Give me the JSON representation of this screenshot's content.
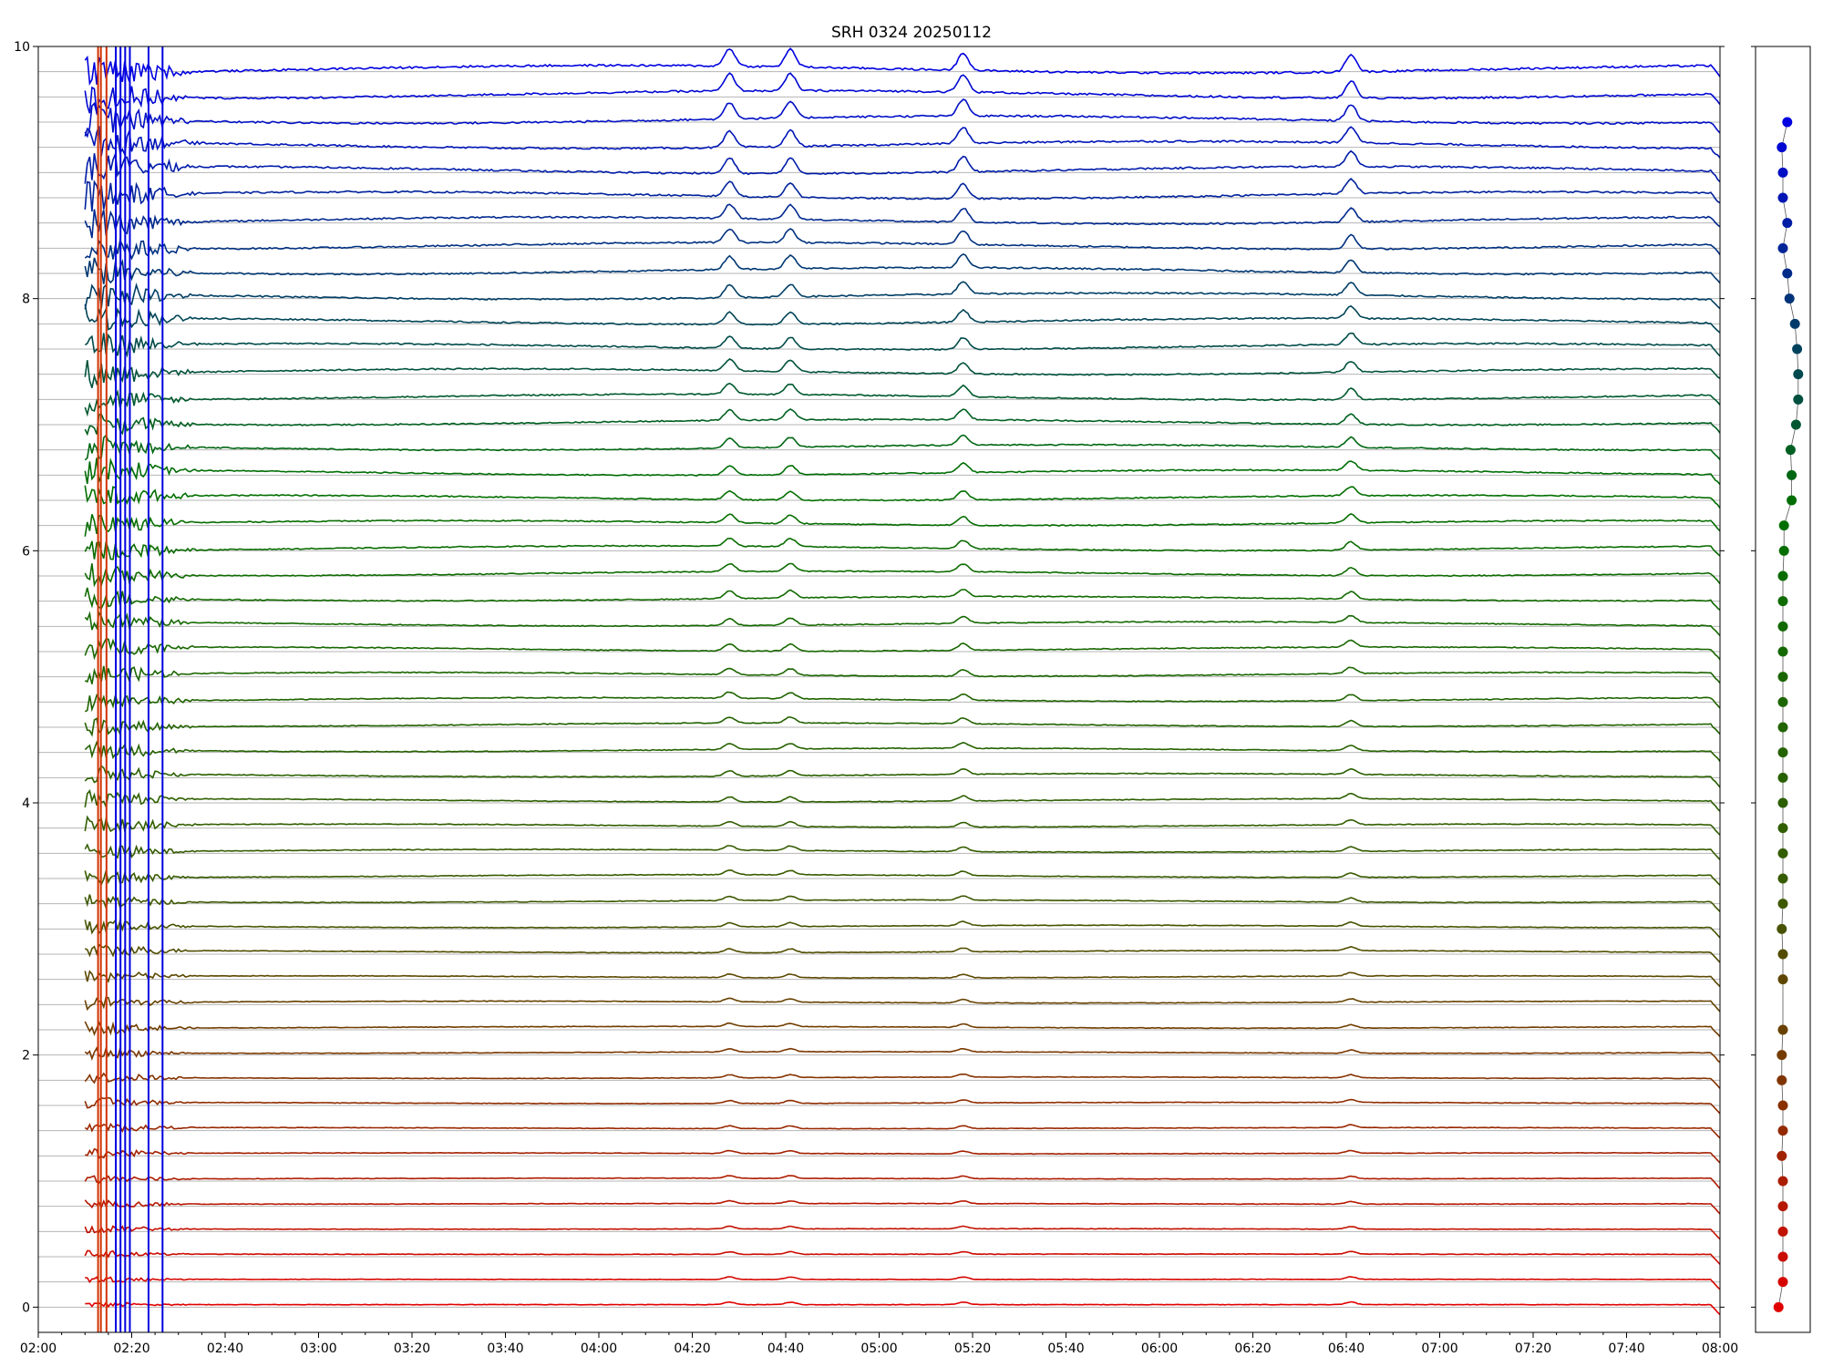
{
  "chart_data": [
    {
      "type": "line",
      "title": "SRH 0324 20250112",
      "xlabel": "",
      "ylabel": "",
      "xlim": [
        "02:00",
        "08:00"
      ],
      "ylim": [
        -0.2,
        10
      ],
      "x_tick_labels": [
        "02:00",
        "02:20",
        "02:40",
        "03:00",
        "03:20",
        "03:40",
        "04:00",
        "04:20",
        "04:40",
        "05:00",
        "05:20",
        "05:40",
        "06:00",
        "06:20",
        "06:40",
        "07:00",
        "07:20",
        "07:40",
        "08:00"
      ],
      "y_ticks": [
        0,
        2,
        4,
        6,
        8,
        10
      ],
      "y_tick_labels": [
        "0",
        "2",
        "4",
        "6",
        "8",
        "10"
      ],
      "grid": "horizontal baseline per channel",
      "legend": "none",
      "channels": {
        "count": 50,
        "baseline_start": 0.0,
        "baseline_step": 0.2,
        "color_gradient": [
          "#e00000",
          "#3a5a00",
          "#007000",
          "#0000e0"
        ],
        "data_start_time": "02:10",
        "common_features": [
          {
            "time": "04:28",
            "label": "burst"
          },
          {
            "time": "04:41",
            "label": "burst"
          },
          {
            "time": "05:18",
            "label": "burst"
          },
          {
            "time": "06:41",
            "label": "burst"
          }
        ]
      }
    },
    {
      "type": "scatter",
      "title": "",
      "xlabel": "",
      "ylabel": "",
      "ylim": [
        -0.2,
        10
      ],
      "points_y": [
        0.0,
        0.2,
        0.4,
        0.6,
        0.8,
        1.0,
        1.2,
        1.4,
        1.6,
        1.8,
        2.0,
        2.2,
        2.6,
        2.8,
        3.0,
        3.2,
        3.4,
        3.6,
        3.8,
        4.0,
        4.2,
        4.4,
        4.6,
        4.8,
        5.0,
        5.2,
        5.4,
        5.6,
        5.8,
        6.0,
        6.2,
        6.4,
        6.6,
        6.8,
        7.0,
        7.2,
        7.4,
        7.6,
        7.8,
        8.0,
        8.2,
        8.4,
        8.6,
        8.8,
        9.0,
        9.2,
        9.4
      ],
      "points_x": [
        -0.4,
        0.0,
        0.0,
        0.0,
        0.0,
        0.0,
        -0.1,
        0.0,
        0.0,
        -0.1,
        -0.1,
        0.0,
        0.0,
        0.0,
        -0.1,
        0.0,
        0.0,
        0.0,
        0.0,
        0.0,
        0.0,
        0.0,
        0.0,
        0.0,
        0.0,
        0.0,
        0.0,
        0.0,
        0.0,
        0.1,
        0.1,
        0.8,
        0.8,
        0.7,
        1.2,
        1.4,
        1.4,
        1.3,
        1.1,
        0.6,
        0.4,
        0.0,
        0.4,
        0.0,
        0.0,
        -0.1,
        0.4
      ],
      "color_gradient": [
        "#e00000",
        "#3a5a00",
        "#007000",
        "#0000e0"
      ]
    }
  ]
}
